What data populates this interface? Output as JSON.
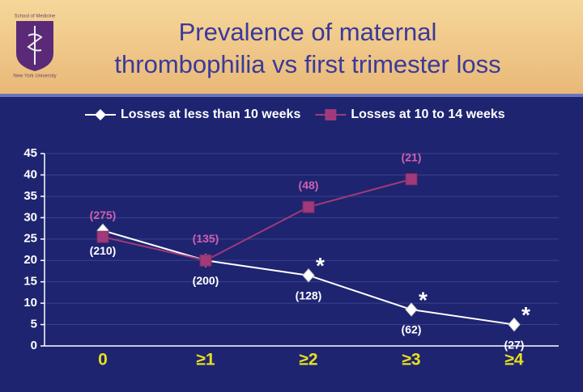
{
  "header": {
    "logo_top": "School of Medicine",
    "logo_bottom": "New York University"
  },
  "chart_data": {
    "type": "line",
    "title": "Prevalence of maternal thrombophilia vs first trimester loss",
    "categories": [
      "0",
      "≥1",
      "≥2",
      "≥3",
      "≥4"
    ],
    "series": [
      {
        "name": "Losses at less than 10 weeks",
        "color": "#ffffff",
        "marker": "diamond",
        "values": [
          27,
          20,
          16.5,
          8.5,
          5
        ],
        "counts": [
          "(210)",
          "(200)",
          "(128)",
          "(62)",
          "(27)"
        ],
        "significance": [
          null,
          null,
          "*",
          "*",
          "*"
        ]
      },
      {
        "name": "Losses at 10 to 14 weeks",
        "color": "#a03a7a",
        "marker": "square",
        "values": [
          25.5,
          20,
          32.5,
          39,
          null
        ],
        "counts": [
          "(275)",
          "(135)",
          "(48)",
          "(21)",
          null
        ]
      }
    ],
    "ylim": [
      0,
      45
    ],
    "yticks": [
      0,
      5,
      10,
      15,
      20,
      25,
      30,
      35,
      40,
      45
    ],
    "grid": true
  }
}
